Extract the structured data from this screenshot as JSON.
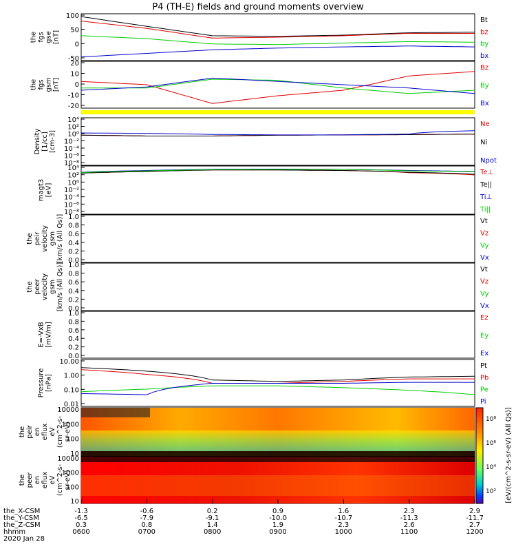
{
  "title": "P4 (TH-E) fields and ground moments overview",
  "x_axis": {
    "rows": [
      {
        "label": "the_X-CSM",
        "values": [
          "-1.3",
          "-0.6",
          "0.2",
          "0.9",
          "1.6",
          "2.3",
          "2.9"
        ]
      },
      {
        "label": "the_Y-CSM",
        "values": [
          "-6.5",
          "-7.9",
          "-9.1",
          "-10.0",
          "-10.7",
          "-11.3",
          "-11.7"
        ]
      },
      {
        "label": "the_Z-CSM",
        "values": [
          "0.3",
          "0.8",
          "1.4",
          "1.9",
          "2.3",
          "2.6",
          "2.7"
        ]
      },
      {
        "label": "hhmm",
        "values": [
          "0600",
          "0700",
          "0800",
          "0900",
          "1000",
          "1100",
          "1200"
        ]
      }
    ],
    "date": "2020 Jan 28"
  },
  "colors": {
    "black": "#000000",
    "red": "#dd0000",
    "green": "#00cc00",
    "blue": "#0000cc",
    "yellow": "#ffff00"
  },
  "panels": [
    {
      "id": "fgs-gse",
      "ylabel_lines": [
        "the",
        "fgs",
        "gse",
        "[nT]"
      ],
      "yticks": [
        "100",
        "50",
        "0",
        "-50"
      ],
      "legend": [
        {
          "text": "Bt",
          "color": "#000000"
        },
        {
          "text": "bz",
          "color": "#dd0000"
        },
        {
          "text": "by",
          "color": "#00cc00"
        },
        {
          "text": "bx",
          "color": "#0000cc"
        }
      ]
    },
    {
      "id": "fgs-gsm",
      "ylabel_lines": [
        "the",
        "fgs",
        "gsm",
        "[nT]"
      ],
      "yticks": [
        "20",
        "10",
        "0",
        "-10",
        "-20"
      ],
      "legend": [
        {
          "text": "Bz",
          "color": "#dd0000"
        },
        {
          "text": "By",
          "color": "#00cc00"
        },
        {
          "text": "Bx",
          "color": "#0000cc"
        }
      ]
    },
    {
      "id": "density",
      "ylabel_lines": [
        "Density",
        "[1/cc]",
        "[cm-3]"
      ],
      "yticks": [
        "10⁴",
        "10²",
        "10⁰",
        "10⁻²",
        "10⁻⁴",
        "10⁻⁶",
        "10⁻⁸"
      ],
      "legend": [
        {
          "text": "Ne",
          "color": "#dd0000"
        },
        {
          "text": "Ni",
          "color": "#000000"
        },
        {
          "text": "Npot",
          "color": "#0000cc"
        }
      ]
    },
    {
      "id": "temperature",
      "ylabel_lines": [
        "magt3",
        "[eV]"
      ],
      "yticks": [
        "10⁴",
        "10²",
        "10⁰",
        "10⁻²",
        "10⁻⁴",
        "10⁻⁶",
        "10⁻⁸"
      ],
      "legend": [
        {
          "text": "Te⊥",
          "color": "#dd0000"
        },
        {
          "text": "Te||",
          "color": "#000000"
        },
        {
          "text": "Ti⊥",
          "color": "#0000cc"
        },
        {
          "text": "Ti||",
          "color": "#00cc00"
        }
      ]
    },
    {
      "id": "peir-velocity",
      "ylabel_lines": [
        "the",
        "peir",
        "velocity",
        "gsm",
        "[km/s (All Qs)]"
      ],
      "yticks": [
        "1.0",
        "0.8",
        "0.6",
        "0.4",
        "0.2",
        "0.0"
      ],
      "legend": [
        {
          "text": "Vt",
          "color": "#000000"
        },
        {
          "text": "Vz",
          "color": "#dd0000"
        },
        {
          "text": "Vy",
          "color": "#00cc00"
        },
        {
          "text": "Vx",
          "color": "#0000cc"
        }
      ]
    },
    {
      "id": "peer-velocity",
      "ylabel_lines": [
        "the",
        "peer",
        "velocity",
        "gsm",
        "[km/s (All Qs)]"
      ],
      "yticks": [
        "1.0",
        "0.8",
        "0.6",
        "0.4",
        "0.2",
        "0.0"
      ],
      "legend": [
        {
          "text": "Vt",
          "color": "#000000"
        },
        {
          "text": "Vz",
          "color": "#dd0000"
        },
        {
          "text": "Vy",
          "color": "#00cc00"
        },
        {
          "text": "Vx",
          "color": "#0000cc"
        }
      ]
    },
    {
      "id": "e-field",
      "ylabel_lines": [
        "E=-VxB",
        "[mV/m]"
      ],
      "yticks": [
        "1.0",
        "0.8",
        "0.6",
        "0.4",
        "0.2",
        "0.0"
      ],
      "legend": [
        {
          "text": "Ez",
          "color": "#dd0000"
        },
        {
          "text": "Ey",
          "color": "#00cc00"
        },
        {
          "text": "Ex",
          "color": "#0000cc"
        }
      ]
    },
    {
      "id": "pressure",
      "ylabel_lines": [
        "Pressure",
        "[nPa]"
      ],
      "yticks": [
        "10.00",
        "1.00",
        "0.10",
        "0.01"
      ],
      "legend": [
        {
          "text": "Pt",
          "color": "#000000"
        },
        {
          "text": "Pb",
          "color": "#dd0000"
        },
        {
          "text": "Pe",
          "color": "#00cc00"
        },
        {
          "text": "Pi",
          "color": "#0000cc"
        }
      ]
    },
    {
      "id": "peir-eflux",
      "ylabel_lines": [
        "the",
        "peir",
        "en",
        "eflux",
        "eV",
        "(cm^2-s-",
        "sr-eV)"
      ],
      "yticks": [
        "10000",
        "1000",
        "100",
        "10"
      ]
    },
    {
      "id": "peer-eflux",
      "ylabel_lines": [
        "the",
        "peer",
        "en",
        "eflux",
        "eV",
        "(cm^2-s-",
        "sr-eV)"
      ],
      "yticks": [
        "10000",
        "1000",
        "100",
        "10"
      ]
    }
  ],
  "colorbar": {
    "label": "[eV/(cm^2-s-sr-eV) (All Qs)]",
    "ticks": [
      "10⁸",
      "10⁶",
      "10⁴",
      "10²"
    ]
  },
  "chart_data": {
    "type": "line",
    "x": [
      "0600",
      "0700",
      "0800",
      "0900",
      "1000",
      "1100",
      "1200"
    ],
    "panels": {
      "fgs-gse": {
        "ylim": [
          -50,
          100
        ],
        "series": [
          {
            "name": "Bt",
            "values": [
              95,
              62,
              30,
              28,
              32,
              40,
              42
            ]
          },
          {
            "name": "bz",
            "values": [
              80,
              55,
              22,
              25,
              30,
              38,
              38
            ]
          },
          {
            "name": "by",
            "values": [
              30,
              20,
              2,
              0,
              5,
              10,
              8
            ]
          },
          {
            "name": "bx",
            "values": [
              -42,
              -30,
              -18,
              -12,
              -8,
              -5,
              -8
            ]
          }
        ]
      },
      "fgs-gsm": {
        "ylim": [
          -20,
          20
        ],
        "series": [
          {
            "name": "Bz",
            "values": [
              3,
              0,
              -17,
              -10,
              -5,
              8,
              12
            ]
          },
          {
            "name": "By",
            "values": [
              -3,
              -3,
              5,
              4,
              -3,
              -8,
              -5
            ]
          },
          {
            "name": "Bx",
            "values": [
              -5,
              -2,
              6,
              3,
              0,
              -3,
              -8
            ]
          }
        ]
      },
      "density": {
        "ylim": [
          "1e-8",
          "1e4"
        ],
        "series": [
          {
            "name": "Ne",
            "values": [
              0.5,
              0.3,
              0.3,
              0.5,
              0.6,
              0.7,
              1
            ]
          },
          {
            "name": "Ni",
            "values": [
              0.5,
              0.3,
              0.3,
              0.5,
              0.6,
              0.7,
              1
            ]
          },
          {
            "name": "Npot",
            "values": [
              2,
              1.5,
              0.8,
              0.6,
              0.6,
              1,
              8
            ]
          }
        ]
      },
      "temperature": {
        "ylim": [
          "1e-8",
          "1e4"
        ],
        "series": [
          {
            "name": "Te⊥",
            "values": [
              300,
              800,
              2000,
              2000,
              1500,
              400,
              100
            ]
          },
          {
            "name": "Te||",
            "values": [
              300,
              800,
              2000,
              2000,
              1500,
              500,
              150
            ]
          },
          {
            "name": "Ti⊥",
            "values": [
              500,
              1500,
              3000,
              3500,
              3000,
              1500,
              800
            ]
          },
          {
            "name": "Ti||",
            "values": [
              400,
              1200,
              2500,
              3000,
              2800,
              1200,
              700
            ]
          }
        ]
      },
      "pressure": {
        "ylim": [
          "0.01",
          "10"
        ],
        "series": [
          {
            "name": "Pt",
            "values": [
              3.5,
              2,
              0.5,
              0.4,
              0.5,
              0.8,
              0.9
            ]
          },
          {
            "name": "Pb",
            "values": [
              2.5,
              1.2,
              0.3,
              0.3,
              0.4,
              0.6,
              0.6
            ]
          },
          {
            "name": "Pe",
            "values": [
              0.08,
              0.12,
              0.2,
              0.2,
              0.15,
              0.1,
              0.05
            ]
          },
          {
            "name": "Pi",
            "values": [
              0.06,
              0.05,
              0.3,
              0.3,
              0.3,
              0.35,
              0.35
            ]
          }
        ]
      }
    }
  }
}
